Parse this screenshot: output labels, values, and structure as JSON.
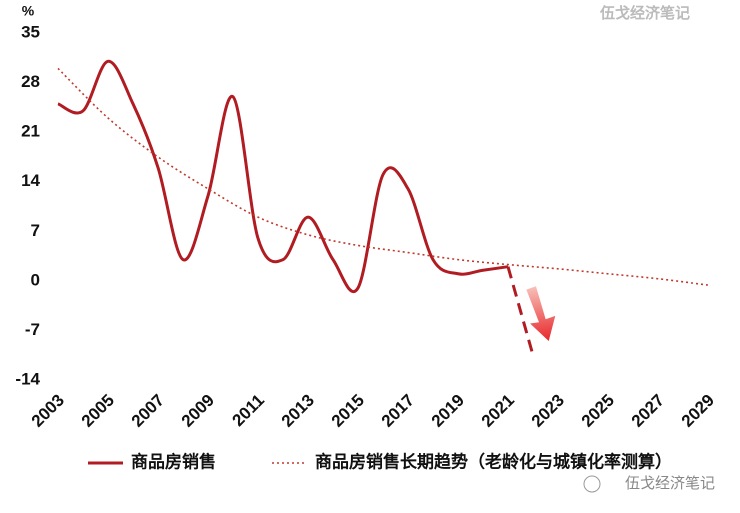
{
  "chart_data": {
    "type": "line",
    "y_unit": "%",
    "watermark": "伍戈经济笔记",
    "footer_watermark": "伍戈经济笔记",
    "xlim": [
      2003,
      2030
    ],
    "xticks": [
      2003,
      2005,
      2007,
      2009,
      2011,
      2013,
      2015,
      2017,
      2019,
      2021,
      2023,
      2025,
      2027,
      2029
    ],
    "ylim": [
      -14,
      35
    ],
    "yticks": [
      -14,
      -7,
      0,
      7,
      14,
      21,
      28,
      35
    ],
    "series": [
      {
        "name": "商品房销售",
        "color": "#b01c22",
        "style": "solid",
        "x": [
          2003,
          2004,
          2005,
          2006,
          2007,
          2008,
          2009,
          2010,
          2011,
          2012,
          2013,
          2014,
          2015,
          2016,
          2017,
          2018,
          2019,
          2020,
          2021
        ],
        "values": [
          25,
          24,
          31,
          25,
          16,
          3,
          12,
          26,
          6,
          3,
          9,
          3,
          -1,
          15,
          13,
          3,
          1,
          1.5,
          2
        ]
      },
      {
        "name": "商品房销售长期趋势（老龄化与城镇化率测算）",
        "color": "#c0392b",
        "style": "dotted",
        "x": [
          2003,
          2005,
          2007,
          2009,
          2011,
          2013,
          2015,
          2017,
          2019,
          2021,
          2023,
          2025,
          2027,
          2029
        ],
        "values": [
          30,
          23,
          17.5,
          13,
          9,
          6.5,
          5,
          4,
          3,
          2.3,
          1.7,
          1,
          0.3,
          -0.6
        ]
      }
    ],
    "decline": {
      "color": "#b01c22",
      "x": [
        2021,
        2022
      ],
      "values": [
        2,
        -10.5
      ]
    }
  }
}
